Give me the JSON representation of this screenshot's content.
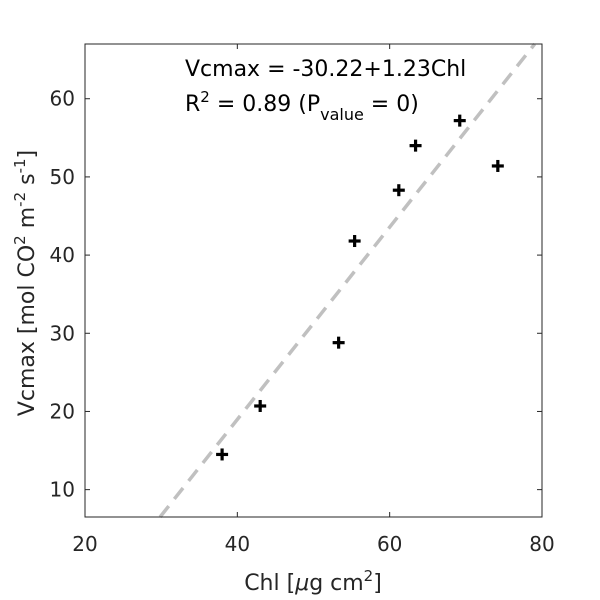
{
  "chart_data": {
    "type": "scatter",
    "xlabel": {
      "text": "Chl [",
      "mu": "μ",
      "rest": "g cm",
      "sup": "2",
      "close": "]"
    },
    "ylabel": {
      "pre": "Vcmax [mol CO",
      "sup1": "2",
      "mid": " m",
      "sup2": "-2",
      "mid2": " s",
      "sup3": "-1",
      "close": "]"
    },
    "xlim": [
      20,
      80
    ],
    "ylim": [
      6.5,
      67
    ],
    "xticks": [
      20,
      40,
      60,
      80
    ],
    "yticks": [
      10,
      20,
      30,
      40,
      50,
      60
    ],
    "grid": false,
    "points": [
      {
        "x": 38.0,
        "y": 14.5
      },
      {
        "x": 43.0,
        "y": 20.7
      },
      {
        "x": 53.3,
        "y": 28.8
      },
      {
        "x": 55.4,
        "y": 41.8
      },
      {
        "x": 61.2,
        "y": 48.3
      },
      {
        "x": 63.4,
        "y": 54.0
      },
      {
        "x": 69.2,
        "y": 57.2
      },
      {
        "x": 74.2,
        "y": 51.4
      }
    ],
    "fit": {
      "intercept": -30.22,
      "slope": 1.23,
      "color": "#c0c0c0",
      "style": "dashed"
    },
    "marker_color": "#000000",
    "annotation": {
      "line1": "Vcmax = -30.22+1.23Chl",
      "line2_pre": "R",
      "line2_sup": "2",
      "line2_mid": " = 0.89 (P",
      "line2_sub": "value",
      "line2_post": " = 0)"
    }
  }
}
